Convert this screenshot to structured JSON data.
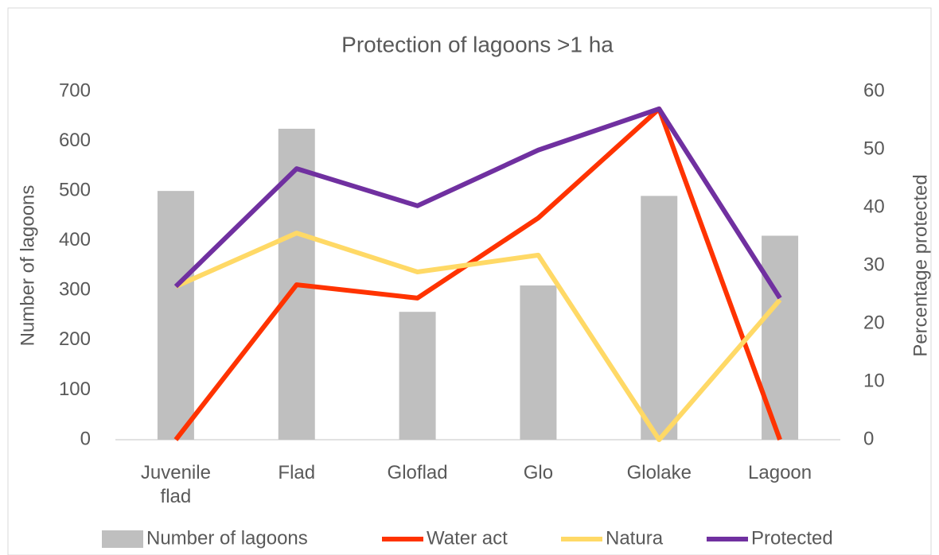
{
  "chart_data": {
    "type": "bar_line",
    "title": "Protection of lagoons >1 ha",
    "y_label": "Number of lagoons",
    "y2_label": "Percentage protected",
    "categories": [
      "Juvenile flad",
      "Flad",
      "Gloflad",
      "Glo",
      "Glolake",
      "Lagoon"
    ],
    "series": [
      {
        "name": "Number of lagoons",
        "type": "bar",
        "color": "#bfbfbf",
        "values": [
          500,
          625,
          257,
          310,
          490,
          410
        ]
      },
      {
        "name": "Water act",
        "type": "line",
        "axis": "y2",
        "color": "#ff3300",
        "values": [
          0,
          26.7,
          24.4,
          38.2,
          57,
          0
        ]
      },
      {
        "name": "Natura",
        "type": "line",
        "axis": "y2",
        "color": "#ffd966",
        "values": [
          26.4,
          35.6,
          28.9,
          31.8,
          0,
          24.1
        ]
      },
      {
        "name": "Protected",
        "type": "line",
        "axis": "y2",
        "color": "#7030a0",
        "values": [
          26.4,
          46.7,
          40.3,
          49.9,
          57,
          24.4
        ]
      }
    ],
    "ylim": [
      0,
      700
    ],
    "yticks": [
      0,
      100,
      200,
      300,
      400,
      500,
      600,
      700
    ],
    "y2lim": [
      0,
      60
    ],
    "y2ticks": [
      0,
      10,
      20,
      30,
      40,
      50,
      60
    ],
    "legend": "bottom"
  }
}
